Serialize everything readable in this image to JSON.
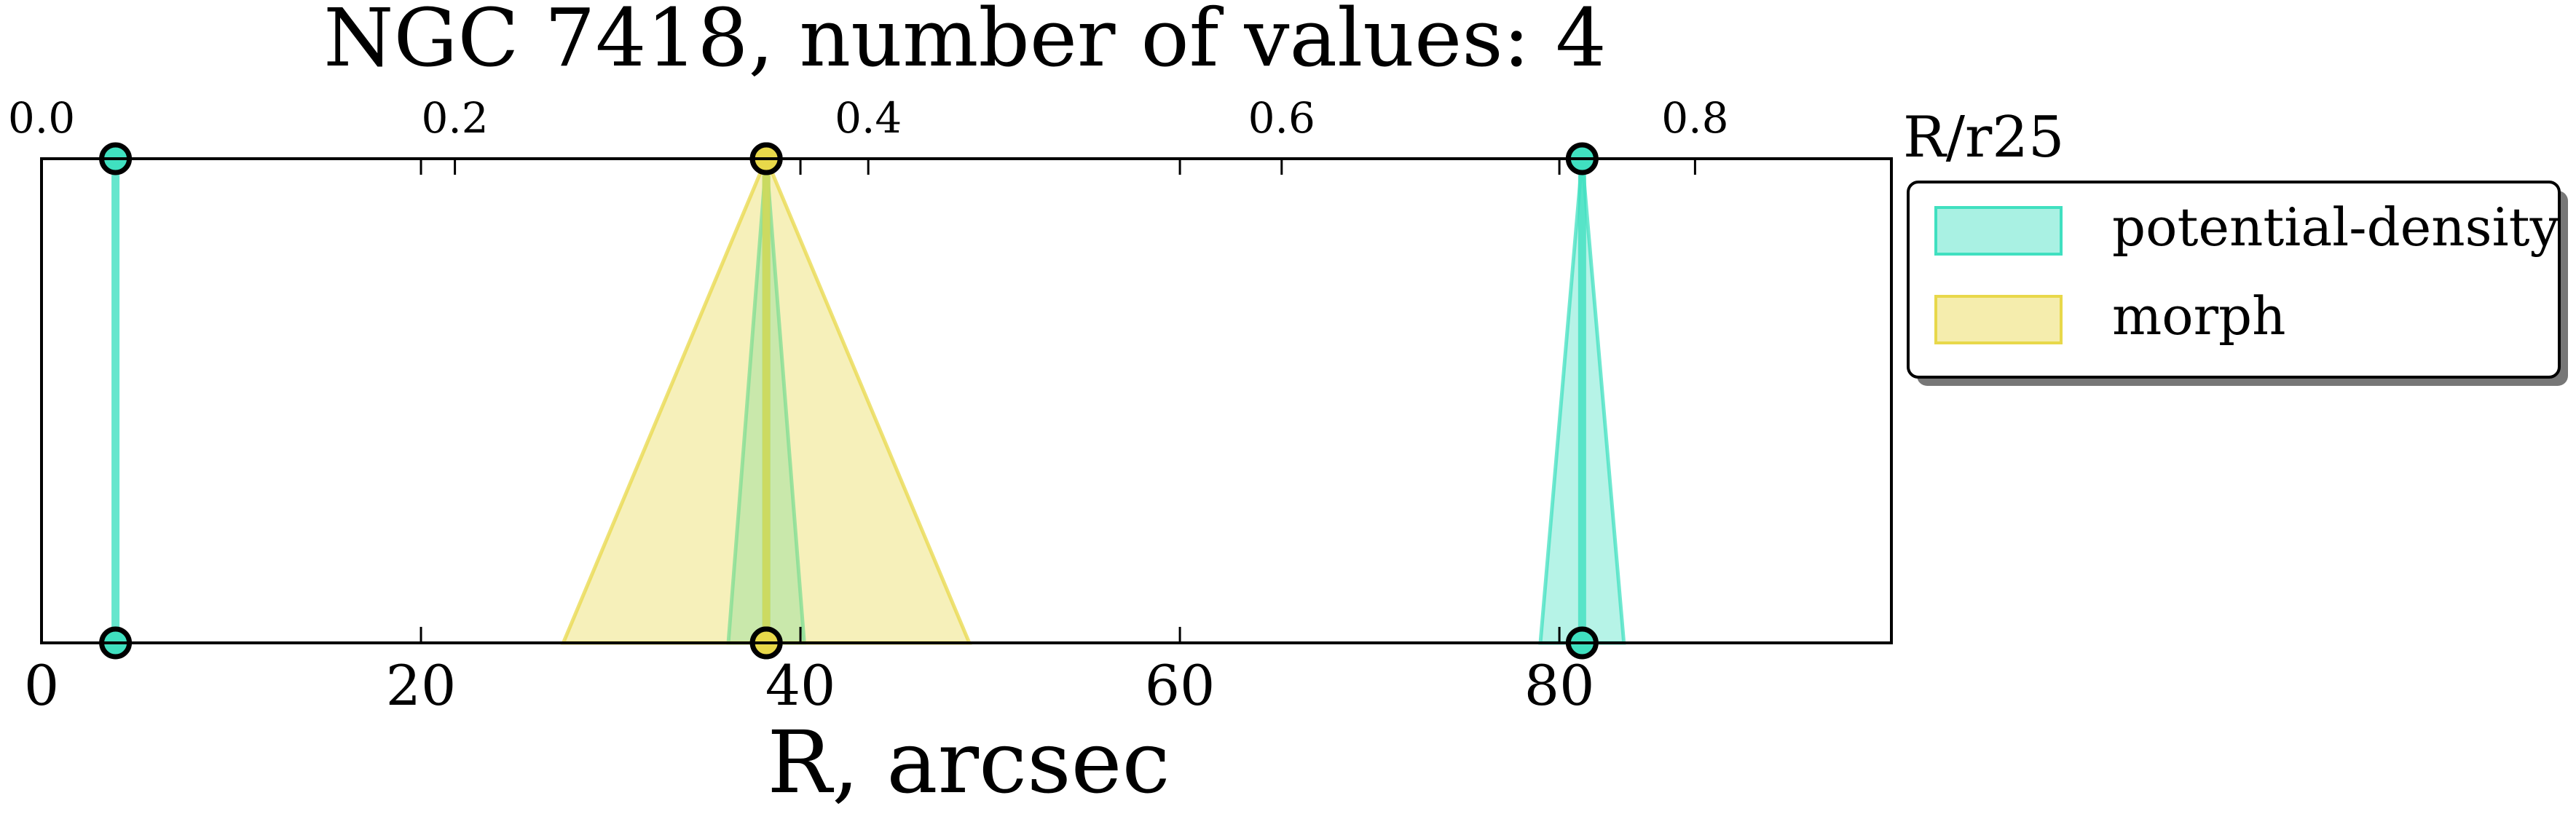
{
  "chart_data": {
    "type": "scatter",
    "title": "NGC 7418, number of values: 4",
    "xlabel": "R, arcsec",
    "x2label": "R/r25",
    "xlim": [
      0,
      97.5
    ],
    "x2lim": [
      0,
      0.895
    ],
    "x_ticks": [
      {
        "value": 0,
        "label": "0"
      },
      {
        "value": 20,
        "label": "20"
      },
      {
        "value": 40,
        "label": "40"
      },
      {
        "value": 60,
        "label": "60"
      },
      {
        "value": 80,
        "label": "80"
      }
    ],
    "x2_ticks": [
      {
        "value": 0.0,
        "label": "0.0"
      },
      {
        "value": 0.2,
        "label": "0.2"
      },
      {
        "value": 0.4,
        "label": "0.4"
      },
      {
        "value": 0.6,
        "label": "0.6"
      },
      {
        "value": 0.8,
        "label": "0.8"
      }
    ],
    "legend_position": "outside-right",
    "grid": false,
    "series": [
      {
        "name": "potential-density",
        "color": "#40e0c0",
        "points": [
          {
            "x": 3.9,
            "err": 0.0
          },
          {
            "x": 38.2,
            "err": 2.0
          },
          {
            "x": 81.2,
            "err": 2.2
          }
        ]
      },
      {
        "name": "morph",
        "color": "#e8d84a",
        "points": [
          {
            "x": 38.2,
            "err": 10.7
          }
        ]
      }
    ]
  }
}
